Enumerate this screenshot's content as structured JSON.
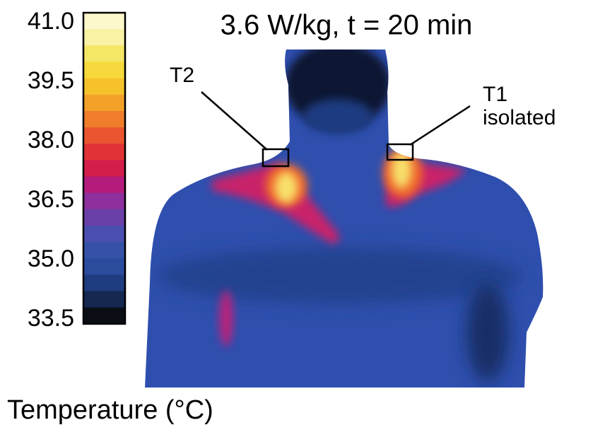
{
  "title": "3.6 W/kg, t = 20 min",
  "colorbar": {
    "label": "Temperature (°C)",
    "ticks": [
      {
        "value": 41,
        "label": "41.0"
      },
      {
        "value": 39.5,
        "label": "39.5"
      },
      {
        "value": 38,
        "label": "38.0"
      },
      {
        "value": 36.5,
        "label": "36.5"
      },
      {
        "value": 35,
        "label": "35.0"
      },
      {
        "value": 33.5,
        "label": "33.5"
      }
    ],
    "colors": [
      "#fdf8cc",
      "#f9f1a4",
      "#f5e766",
      "#f6d93c",
      "#f6c22c",
      "#f4a12a",
      "#ef7d2a",
      "#ea5530",
      "#e13336",
      "#d21e4a",
      "#b41c7c",
      "#8d2f9c",
      "#6a40a8",
      "#4a4fb0",
      "#3552a8",
      "#2b4b9c",
      "#1f3c80",
      "#142850",
      "#0b0e15"
    ]
  },
  "annotations": {
    "t2": "T2",
    "t1": "T1",
    "t1_note": "isolated"
  }
}
